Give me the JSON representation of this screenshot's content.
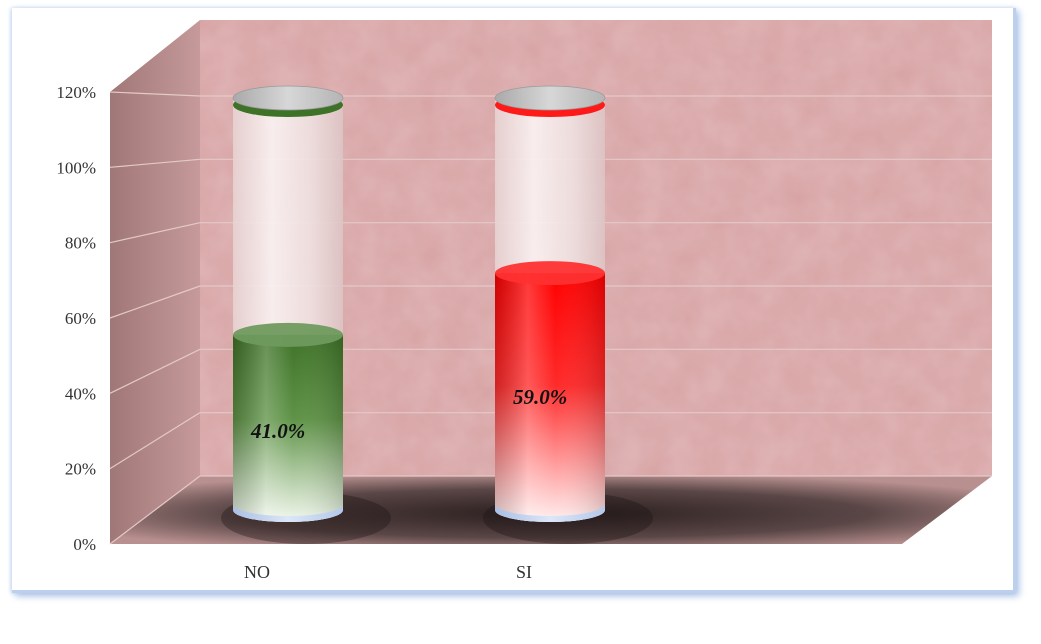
{
  "chart_data": {
    "type": "bar",
    "categories": [
      "NO",
      "SI"
    ],
    "values": [
      41.0,
      59.0
    ],
    "data_labels": [
      "41.0%",
      "59.0%"
    ],
    "yticks": [
      "0%",
      "20%",
      "40%",
      "60%",
      "80%",
      "100%",
      "120%"
    ],
    "ylim": [
      0,
      120
    ],
    "title": "",
    "xlabel": "",
    "ylabel": "",
    "grid": true,
    "legend": "none",
    "style": "3d-cylinder",
    "colors": {
      "NO": "#3f7a2a",
      "SI": "#ff0000",
      "wall": "#d9a5a5",
      "floor": "#4a3a3a"
    }
  }
}
